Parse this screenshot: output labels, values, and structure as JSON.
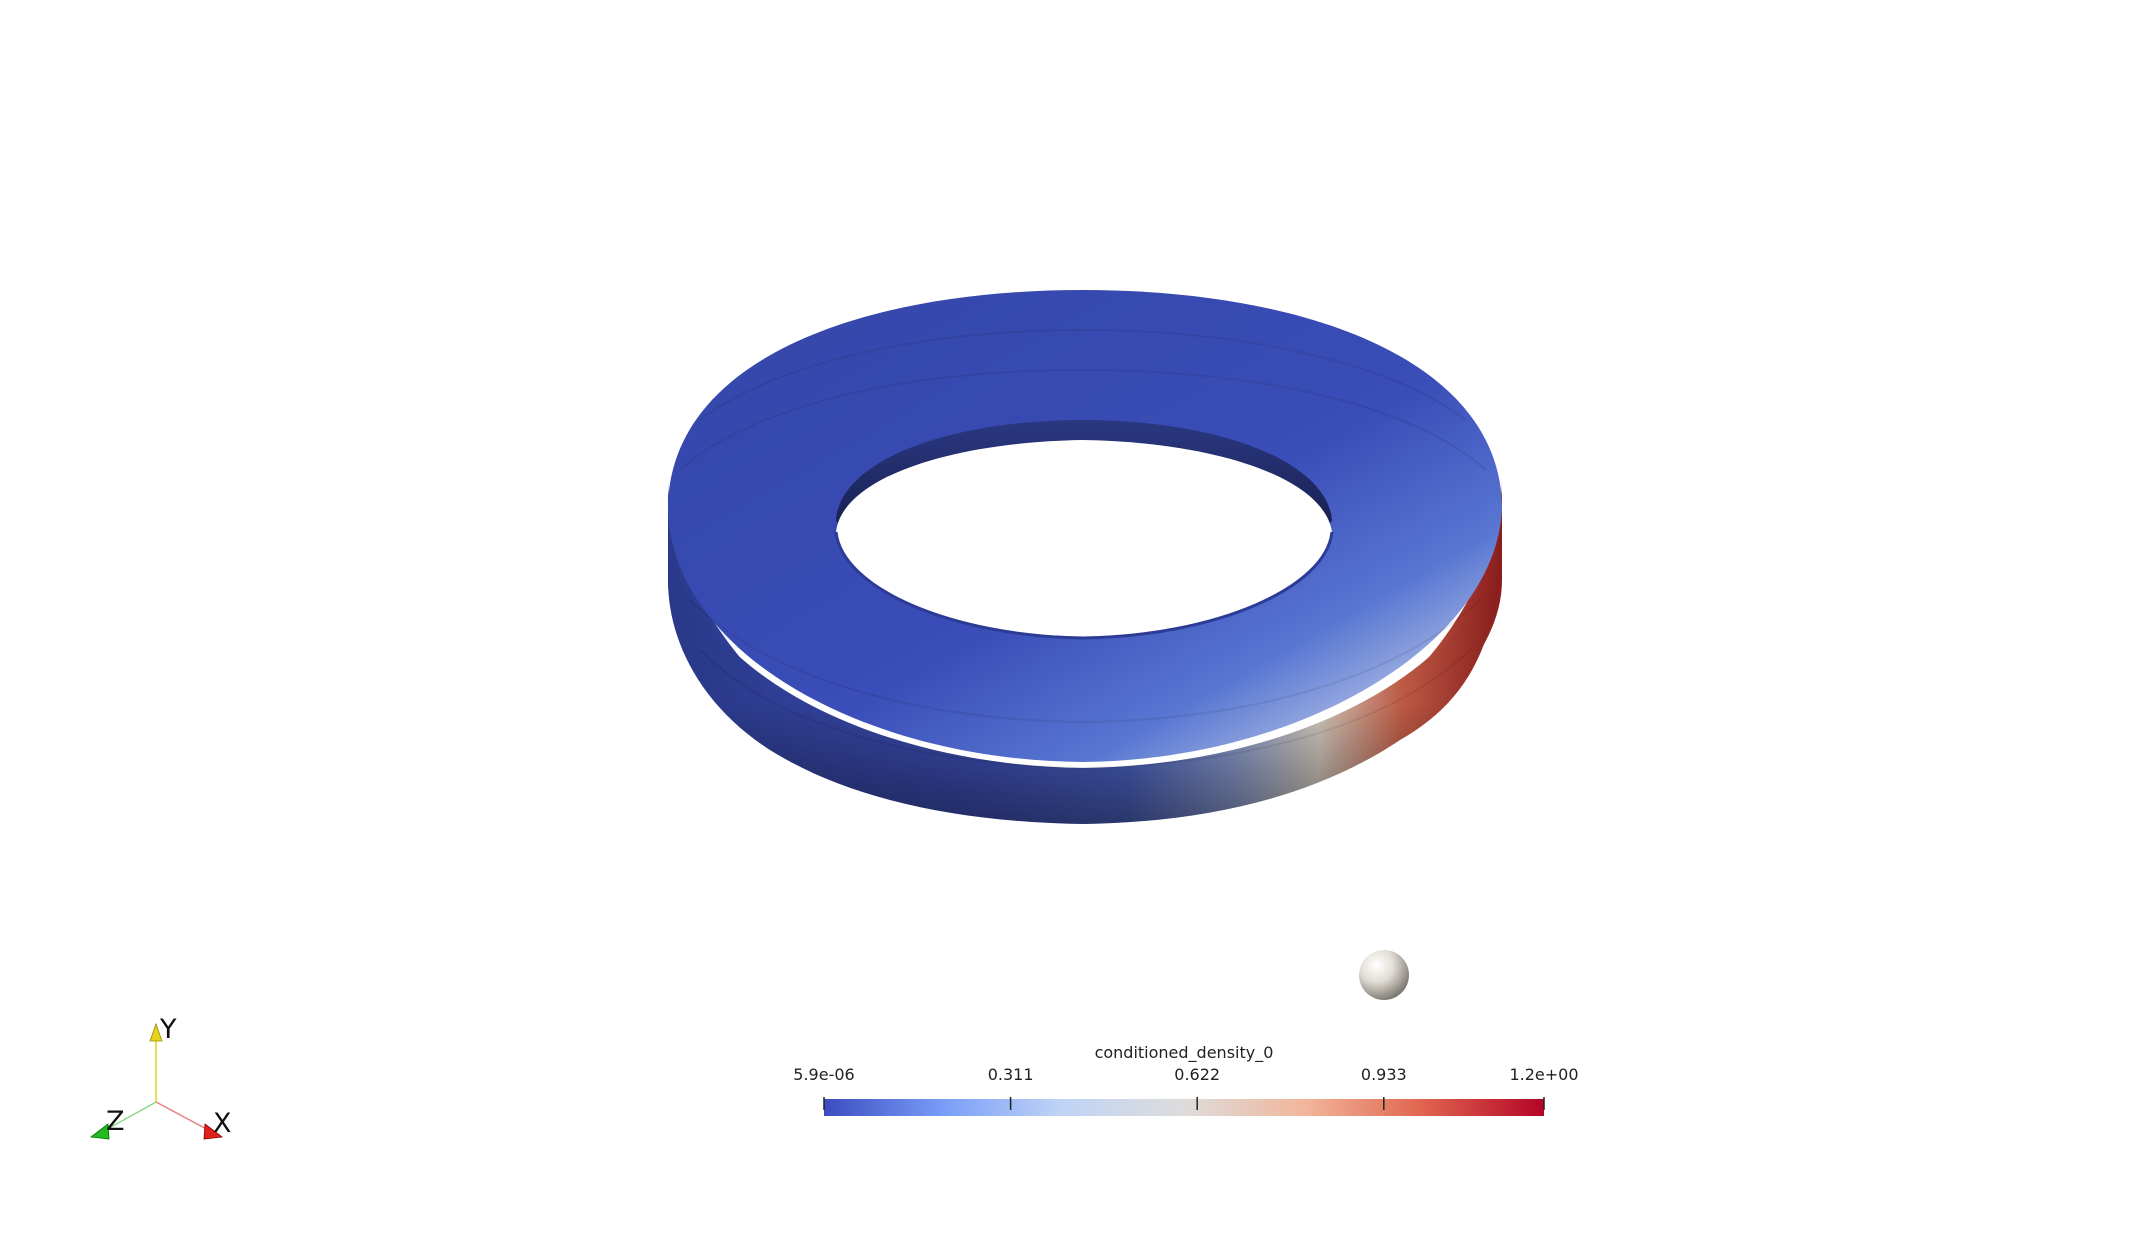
{
  "scene": {
    "object": "torus",
    "background_color": "#ffffff",
    "surface_colors": {
      "low": "#3b4cc0",
      "mid": "#dddcdc",
      "high": "#b40426",
      "shadow": "#1b2450"
    },
    "light_sphere_color": "#d9d6cf"
  },
  "colorbar": {
    "title": "conditioned_density_0",
    "colormap": "Cool to Warm",
    "range": [
      5.9e-06,
      1.2
    ],
    "ticks": [
      {
        "value": 5.9e-06,
        "label": "5.9e-06"
      },
      {
        "value": 0.311,
        "label": "0.311"
      },
      {
        "value": 0.622,
        "label": "0.622"
      },
      {
        "value": 0.933,
        "label": "0.933"
      },
      {
        "value": 1.2,
        "label": "1.2e+00"
      }
    ],
    "color_stops": [
      "#3b4cc0",
      "#7b9ff9",
      "#c0d4f5",
      "#dddcdc",
      "#f2b59a",
      "#e0654f",
      "#b40426"
    ]
  },
  "orientation_axes": {
    "x": {
      "label": "X",
      "color": "#e0201a"
    },
    "y": {
      "label": "Y",
      "color": "#e6d21a"
    },
    "z": {
      "label": "Z",
      "color": "#22bb22"
    }
  }
}
